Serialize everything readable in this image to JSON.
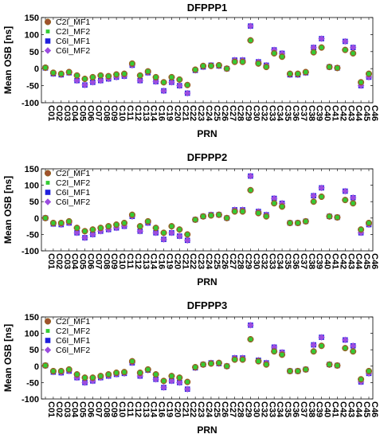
{
  "chart_data": [
    {
      "type": "scatter",
      "title": "DFPPP1",
      "xlabel": "PRN",
      "ylabel": "Mean OSB [ns]",
      "ylim": [
        -100,
        150
      ],
      "yticks": [
        -100,
        -50,
        0,
        50,
        100,
        150
      ],
      "grid": false,
      "legend": "top-left",
      "categories": [
        "C01",
        "C02",
        "C03",
        "C04",
        "C05",
        "C06",
        "C07",
        "C08",
        "C09",
        "C10",
        "C11",
        "C12",
        "C13",
        "C14",
        "C16",
        "C19",
        "C20",
        "C21",
        "C22",
        "C23",
        "C24",
        "C25",
        "C26",
        "C27",
        "C28",
        "C29",
        "C30",
        "C32",
        "C33",
        "C34",
        "C35",
        "C36",
        "C37",
        "C38",
        "C39",
        "C40",
        "C41",
        "C42",
        "C43",
        "C44",
        "C45",
        "C46"
      ],
      "series": [
        {
          "name": "C2I_MF1",
          "color": "#a0522d",
          "marker": "circle",
          "values": [
            3,
            -12,
            -15,
            -10,
            -20,
            -30,
            -25,
            -20,
            -22,
            -17,
            -15,
            15,
            -20,
            -8,
            -25,
            -40,
            -25,
            -32,
            -48,
            -3,
            8,
            8,
            10,
            0,
            20,
            20,
            83,
            15,
            5,
            45,
            35,
            -15,
            -15,
            -10,
            48,
            62,
            5,
            2,
            55,
            45,
            -40,
            -15
          ]
        },
        {
          "name": "C2I_MF2",
          "color": "#33cc33",
          "marker": "square",
          "values": [
            3,
            -12,
            -15,
            -10,
            -20,
            -30,
            -25,
            -20,
            -22,
            -17,
            -15,
            15,
            -20,
            -8,
            -25,
            -40,
            -25,
            -32,
            -48,
            -3,
            8,
            8,
            10,
            0,
            20,
            20,
            83,
            15,
            5,
            45,
            35,
            -15,
            -15,
            -10,
            48,
            62,
            5,
            2,
            55,
            45,
            -40,
            -15
          ]
        },
        {
          "name": "C6I_MF1",
          "color": "#1f1fdd",
          "marker": "square",
          "values": [
            2,
            -15,
            -18,
            -12,
            -35,
            -48,
            -40,
            -35,
            -30,
            -25,
            -22,
            10,
            -35,
            -12,
            -38,
            -65,
            -40,
            -50,
            -72,
            -5,
            5,
            10,
            8,
            0,
            25,
            25,
            125,
            20,
            10,
            55,
            45,
            -18,
            -18,
            -12,
            62,
            88,
            5,
            2,
            80,
            62,
            -50,
            -25
          ]
        },
        {
          "name": "C6I_MF2",
          "color": "#9b4de0",
          "marker": "diamond",
          "values": [
            2,
            -15,
            -18,
            -12,
            -35,
            -48,
            -40,
            -35,
            -30,
            -25,
            -22,
            10,
            -35,
            -12,
            -38,
            -65,
            -40,
            -50,
            -72,
            -5,
            5,
            10,
            8,
            0,
            25,
            25,
            125,
            20,
            10,
            55,
            45,
            -18,
            -18,
            -12,
            62,
            88,
            5,
            2,
            80,
            62,
            -50,
            -25
          ]
        }
      ]
    },
    {
      "type": "scatter",
      "title": "DFPPP2",
      "xlabel": "PRN",
      "ylabel": "Mean OSB [ns]",
      "ylim": [
        -100,
        150
      ],
      "yticks": [
        -100,
        -50,
        0,
        50,
        100,
        150
      ],
      "grid": false,
      "legend": "top-left",
      "categories": [
        "C01",
        "C02",
        "C03",
        "C04",
        "C05",
        "C06",
        "C07",
        "C08",
        "C09",
        "C10",
        "C11",
        "C12",
        "C13",
        "C14",
        "C16",
        "C19",
        "C20",
        "C21",
        "C22",
        "C23",
        "C24",
        "C25",
        "C26",
        "C27",
        "C28",
        "C29",
        "C30",
        "C32",
        "C33",
        "C34",
        "C35",
        "C36",
        "C37",
        "C38",
        "C39",
        "C40",
        "C41",
        "C42",
        "C43",
        "C44",
        "C45",
        "C46"
      ],
      "series": [
        {
          "name": "C2I_MF1",
          "color": "#a0522d",
          "marker": "circle",
          "values": [
            0,
            -15,
            -15,
            -10,
            -30,
            -40,
            -35,
            -30,
            -25,
            -20,
            -15,
            10,
            -25,
            -10,
            -30,
            -45,
            -25,
            -35,
            -50,
            -5,
            5,
            8,
            10,
            0,
            20,
            20,
            85,
            15,
            5,
            45,
            35,
            -15,
            -15,
            -10,
            50,
            65,
            5,
            2,
            55,
            45,
            -35,
            -15
          ]
        },
        {
          "name": "C2I_MF2",
          "color": "#33cc33",
          "marker": "square",
          "values": [
            0,
            -15,
            -15,
            -10,
            -30,
            -40,
            -35,
            -30,
            -25,
            -20,
            -15,
            10,
            -25,
            -10,
            -30,
            -45,
            -25,
            -35,
            -50,
            -5,
            5,
            8,
            10,
            0,
            20,
            20,
            85,
            15,
            5,
            45,
            35,
            -15,
            -15,
            -10,
            50,
            65,
            5,
            2,
            55,
            45,
            -35,
            -15
          ]
        },
        {
          "name": "C6I_MF1",
          "color": "#1f1fdd",
          "marker": "square",
          "values": [
            0,
            -18,
            -20,
            -15,
            -45,
            -60,
            -50,
            -40,
            -35,
            -30,
            -25,
            5,
            -40,
            -15,
            -45,
            -65,
            -45,
            -55,
            -68,
            -5,
            5,
            10,
            10,
            0,
            25,
            25,
            128,
            20,
            10,
            60,
            45,
            -15,
            -15,
            -10,
            68,
            92,
            5,
            2,
            82,
            62,
            -45,
            -20
          ]
        },
        {
          "name": "C6I_MF2",
          "color": "#9b4de0",
          "marker": "diamond",
          "values": [
            0,
            -18,
            -20,
            -15,
            -45,
            -60,
            -50,
            -40,
            -35,
            -30,
            -25,
            5,
            -40,
            -15,
            -45,
            -65,
            -45,
            -55,
            -68,
            -5,
            5,
            10,
            10,
            0,
            25,
            25,
            128,
            20,
            10,
            60,
            45,
            -15,
            -15,
            -10,
            68,
            92,
            5,
            2,
            82,
            62,
            -45,
            -20
          ]
        }
      ]
    },
    {
      "type": "scatter",
      "title": "DFPPP3",
      "xlabel": "PRN",
      "ylabel": "Mean OSB [ns]",
      "ylim": [
        -100,
        150
      ],
      "yticks": [
        -100,
        -50,
        0,
        50,
        100,
        150
      ],
      "grid": false,
      "legend": "top-left",
      "categories": [
        "C01",
        "C02",
        "C03",
        "C04",
        "C05",
        "C06",
        "C07",
        "C08",
        "C09",
        "C10",
        "C11",
        "C12",
        "C13",
        "C14",
        "C16",
        "C19",
        "C20",
        "C21",
        "C22",
        "C23",
        "C24",
        "C25",
        "C26",
        "C27",
        "C28",
        "C29",
        "C30",
        "C32",
        "C33",
        "C34",
        "C35",
        "C36",
        "C37",
        "C38",
        "C39",
        "C40",
        "C41",
        "C42",
        "C43",
        "C44",
        "C45",
        "C46"
      ],
      "series": [
        {
          "name": "C2I_MF1",
          "color": "#a0522d",
          "marker": "circle",
          "values": [
            2,
            -15,
            -15,
            -10,
            -25,
            -35,
            -35,
            -30,
            -25,
            -20,
            -18,
            15,
            -20,
            -10,
            -25,
            -45,
            -30,
            -35,
            -48,
            -3,
            5,
            8,
            10,
            0,
            20,
            20,
            82,
            15,
            5,
            45,
            35,
            -15,
            -15,
            -10,
            45,
            62,
            5,
            2,
            55,
            45,
            -40,
            -15
          ]
        },
        {
          "name": "C2I_MF2",
          "color": "#33cc33",
          "marker": "square",
          "values": [
            2,
            -15,
            -15,
            -10,
            -25,
            -35,
            -35,
            -30,
            -25,
            -20,
            -18,
            15,
            -20,
            -10,
            -25,
            -45,
            -30,
            -35,
            -48,
            -3,
            5,
            8,
            10,
            0,
            20,
            20,
            82,
            15,
            5,
            45,
            35,
            -15,
            -15,
            -10,
            45,
            62,
            5,
            2,
            55,
            45,
            -40,
            -15
          ]
        },
        {
          "name": "C6I_MF1",
          "color": "#1f1fdd",
          "marker": "square",
          "values": [
            2,
            -18,
            -20,
            -15,
            -35,
            -50,
            -45,
            -35,
            -30,
            -25,
            -22,
            10,
            -30,
            -12,
            -40,
            -65,
            -45,
            -50,
            -70,
            -5,
            5,
            10,
            8,
            0,
            25,
            25,
            125,
            18,
            10,
            58,
            42,
            -15,
            -15,
            -10,
            65,
            88,
            5,
            2,
            80,
            62,
            -48,
            -22
          ]
        },
        {
          "name": "C6I_MF2",
          "color": "#9b4de0",
          "marker": "diamond",
          "values": [
            2,
            -18,
            -20,
            -15,
            -35,
            -50,
            -45,
            -35,
            -30,
            -25,
            -22,
            10,
            -30,
            -12,
            -40,
            -65,
            -45,
            -50,
            -70,
            -5,
            5,
            10,
            8,
            0,
            25,
            25,
            125,
            18,
            10,
            58,
            42,
            -15,
            -15,
            -10,
            65,
            88,
            5,
            2,
            80,
            62,
            -48,
            -22
          ]
        }
      ]
    }
  ]
}
